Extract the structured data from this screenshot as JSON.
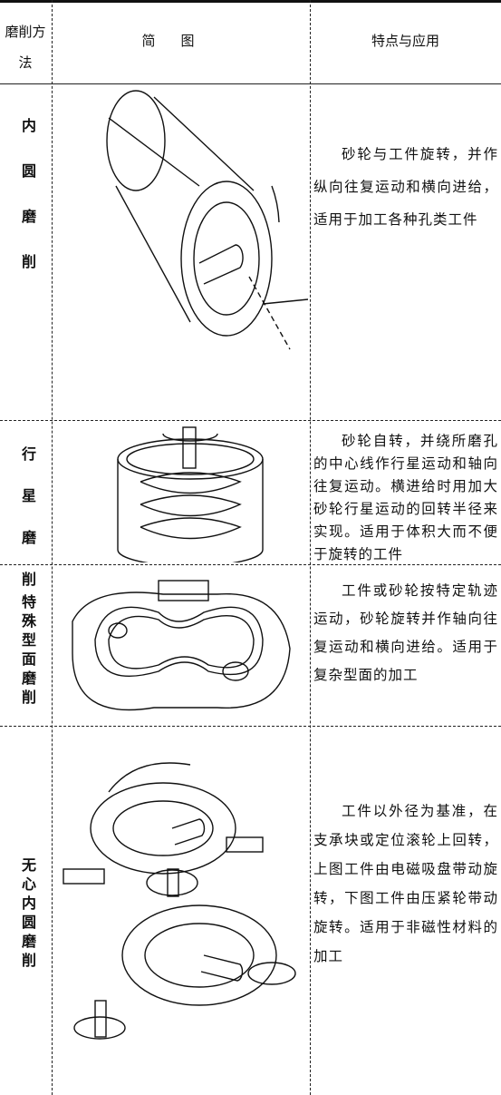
{
  "table": {
    "header": [
      "磨削方法",
      "简图",
      "特点与应用"
    ],
    "rows": [
      {
        "method": "内圆磨削",
        "description": "砂轮与工件旋转，并作纵向往复运动和横向进给，适用于加工各种孔类工件"
      },
      {
        "method": "行星磨削",
        "description": "砂轮自转，并绕所磨孔的中心线作行星运动和轴向往复运动。横进给时用加大砂轮行星运动的回转半径来实现。适用于体积大而不便于旋转的工件"
      },
      {
        "method": "特殊型面磨削",
        "description": "工件或砂轮按特定轨迹运动，砂轮旋转并作轴向往复运动和横向进给。适用于复杂型面的加工"
      },
      {
        "method": "无心内圆磨削",
        "description": "工件以外径为基准，在支承块或定位滚轮上回转，上图工件由电磁吸盘带动旋转，下图工件由压紧轮带动旋转。适用于非磁性材料的加工"
      }
    ]
  }
}
